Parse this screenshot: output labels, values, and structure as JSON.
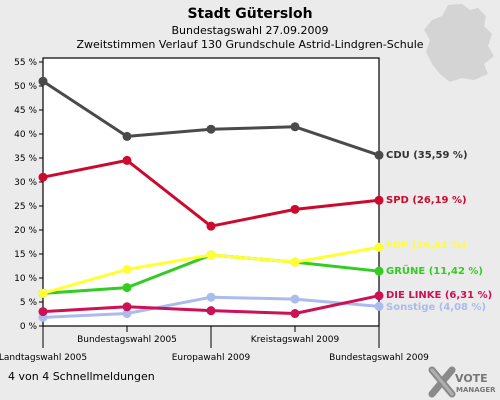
{
  "header": {
    "title": "Stadt Gütersloh",
    "subtitle": "Bundestagswahl 27.09.2009",
    "subtitle2": "Zweitstimmen Verlauf 130 Grundschule Astrid-Lindgren-Schule"
  },
  "footer": {
    "text": "4 von 4 Schnellmeldungen"
  },
  "logo": {
    "text1": "VOTE",
    "text2": "MANAGER"
  },
  "chart_data": {
    "type": "line",
    "categories": [
      "Landtagswahl 2005",
      "Bundestagswahl 2005",
      "Europawahl 2009",
      "Kreistagswahl 2009",
      "Bundestagswahl 2009"
    ],
    "y_ticks": [
      "0 %",
      "5 %",
      "10 %",
      "15 %",
      "20 %",
      "25 %",
      "30 %",
      "35 %",
      "40 %",
      "45 %",
      "50 %",
      "55 %"
    ],
    "ylim": [
      0,
      55
    ],
    "grid": false,
    "series": [
      {
        "name": "CDU",
        "label": "CDU (35,59 %)",
        "color": "#4a4a4a",
        "values": [
          51.0,
          39.5,
          41.0,
          41.5,
          35.59
        ]
      },
      {
        "name": "SPD",
        "label": "SPD (26,19 %)",
        "color": "#cc0a2e",
        "values": [
          31.0,
          34.5,
          20.8,
          24.3,
          26.19
        ]
      },
      {
        "name": "FDP",
        "label": "FDP (16,41 %)",
        "color": "#ffff33",
        "values": [
          6.8,
          11.8,
          14.8,
          13.3,
          16.41
        ]
      },
      {
        "name": "GRÜNE",
        "label": "GRÜNE (11,42 %)",
        "color": "#33cc22",
        "values": [
          6.8,
          8.0,
          14.8,
          13.3,
          11.42
        ]
      },
      {
        "name": "DIE LINKE",
        "label": "DIE LINKE (6,31 %)",
        "color": "#cc1155",
        "values": [
          3.0,
          4.0,
          3.2,
          2.6,
          6.31
        ]
      },
      {
        "name": "Sonstige",
        "label": "Sonstige (4,08 %)",
        "color": "#aabbee",
        "values": [
          1.8,
          2.6,
          6.0,
          5.6,
          4.08
        ]
      }
    ]
  }
}
